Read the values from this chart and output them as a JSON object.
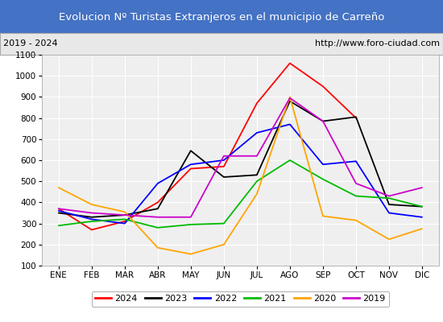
{
  "title": "Evolucion Nº Turistas Extranjeros en el municipio de Carreño",
  "title_bg_color": "#4472c4",
  "title_font_color": "white",
  "subtitle_left": "2019 - 2024",
  "subtitle_right": "http://www.foro-ciudad.com",
  "subtitle_bg_color": "#e8e8e8",
  "months": [
    "ENE",
    "FEB",
    "MAR",
    "ABR",
    "MAY",
    "JUN",
    "JUL",
    "AGO",
    "SEP",
    "OCT",
    "NOV",
    "DIC"
  ],
  "ylim": [
    100,
    1100
  ],
  "yticks": [
    100,
    200,
    300,
    400,
    500,
    600,
    700,
    800,
    900,
    1000,
    1100
  ],
  "series": {
    "2024": {
      "color": "#ff0000",
      "data": [
        370,
        270,
        310,
        400,
        560,
        570,
        870,
        1060,
        950,
        800,
        null,
        null
      ]
    },
    "2023": {
      "color": "#000000",
      "data": [
        350,
        330,
        340,
        370,
        645,
        520,
        530,
        880,
        785,
        805,
        390,
        380
      ]
    },
    "2022": {
      "color": "#0000ff",
      "data": [
        360,
        320,
        300,
        490,
        580,
        600,
        730,
        770,
        580,
        595,
        350,
        330
      ]
    },
    "2021": {
      "color": "#00bb00",
      "data": [
        290,
        310,
        320,
        280,
        295,
        300,
        500,
        600,
        510,
        430,
        420,
        380
      ]
    },
    "2020": {
      "color": "#ffa500",
      "data": [
        470,
        390,
        355,
        185,
        155,
        200,
        440,
        900,
        335,
        315,
        225,
        275
      ]
    },
    "2019": {
      "color": "#cc00cc",
      "data": [
        370,
        350,
        340,
        330,
        330,
        620,
        620,
        895,
        785,
        490,
        430,
        470
      ]
    }
  },
  "legend_order": [
    "2024",
    "2023",
    "2022",
    "2021",
    "2020",
    "2019"
  ],
  "bg_plot_color": "#efefef",
  "grid_color": "#ffffff"
}
